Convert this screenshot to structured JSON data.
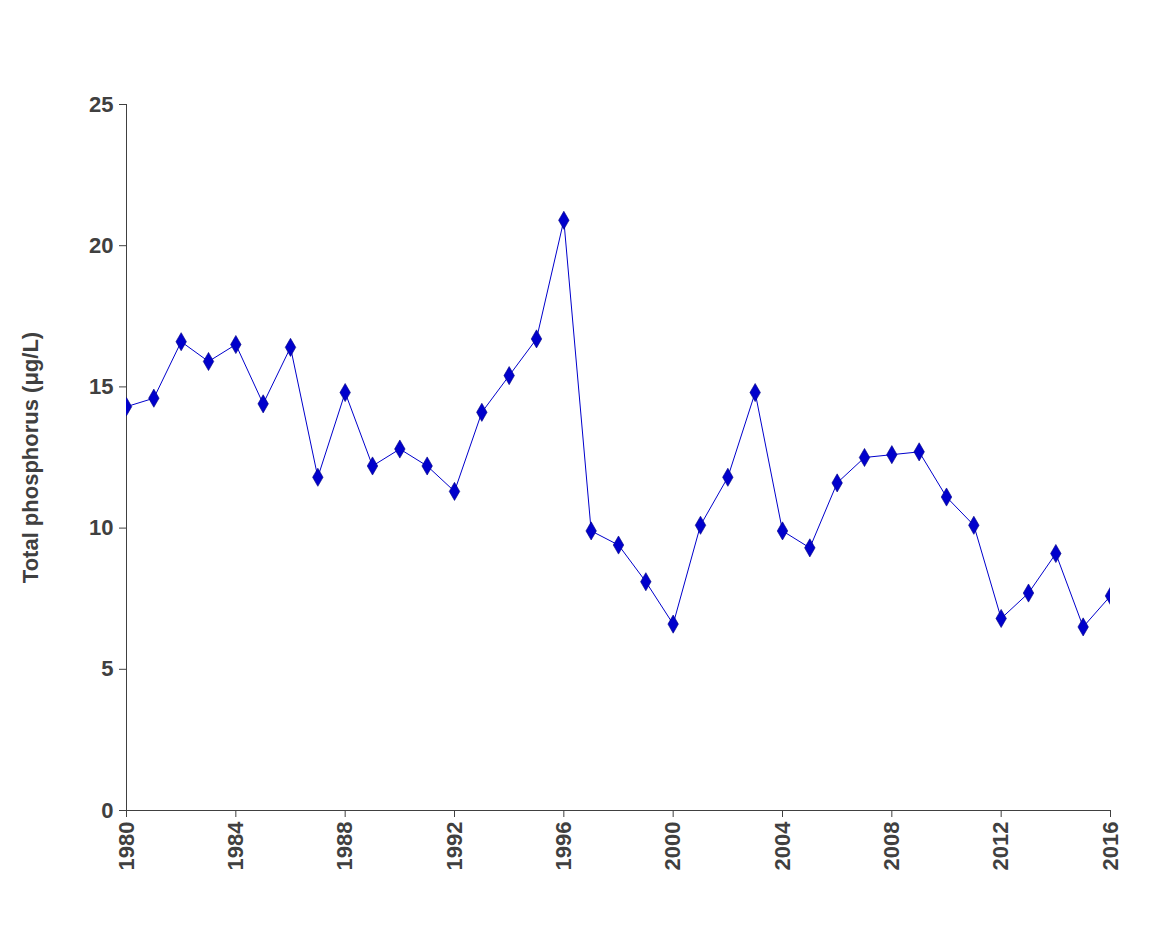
{
  "chart_data": {
    "type": "line",
    "y_label": "Total phosphorus (μg/L)",
    "x": [
      1980,
      1981,
      1982,
      1983,
      1984,
      1985,
      1986,
      1987,
      1988,
      1989,
      1990,
      1991,
      1992,
      1993,
      1994,
      1995,
      1996,
      1997,
      1998,
      1999,
      2000,
      2001,
      2002,
      2003,
      2004,
      2005,
      2006,
      2007,
      2008,
      2009,
      2010,
      2011,
      2012,
      2013,
      2014,
      2015,
      2016
    ],
    "values": [
      14.3,
      14.6,
      16.6,
      15.9,
      16.5,
      14.4,
      16.4,
      11.8,
      14.8,
      12.2,
      12.8,
      12.2,
      11.3,
      14.1,
      15.4,
      16.7,
      20.9,
      9.9,
      9.4,
      8.1,
      6.6,
      10.1,
      11.8,
      14.8,
      9.9,
      9.3,
      11.6,
      12.5,
      12.6,
      12.7,
      11.1,
      10.1,
      6.8,
      7.7,
      9.1,
      6.5,
      7.6
    ],
    "color": "#0000cc",
    "marker": "diamond",
    "line_style": "solid",
    "xlim": [
      1980,
      2016
    ],
    "xticks": [
      1980,
      1984,
      1988,
      1992,
      1996,
      2000,
      2004,
      2008,
      2012,
      2016
    ],
    "ylim": [
      0,
      25
    ],
    "yticks": [
      0,
      5,
      10,
      15,
      20,
      25
    ],
    "grid": false
  }
}
